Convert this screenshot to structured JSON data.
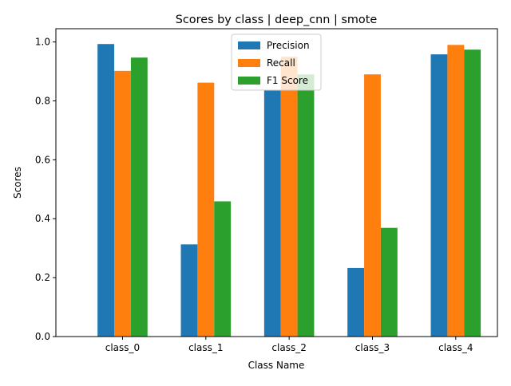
{
  "chart_data": {
    "type": "bar",
    "title": "Scores by class | deep_cnn | smote",
    "xlabel": "Class Name",
    "ylabel": "Scores",
    "categories": [
      "class_0",
      "class_1",
      "class_2",
      "class_3",
      "class_4"
    ],
    "series": [
      {
        "name": "Precision",
        "color": "#1f77b4",
        "values": [
          0.993,
          0.313,
          0.835,
          0.233,
          0.958
        ]
      },
      {
        "name": "Recall",
        "color": "#ff7f0e",
        "values": [
          0.902,
          0.862,
          0.95,
          0.89,
          0.99
        ]
      },
      {
        "name": "F1 Score",
        "color": "#2ca02c",
        "values": [
          0.947,
          0.459,
          0.89,
          0.369,
          0.974
        ]
      }
    ],
    "ylim": [
      0,
      1.045
    ],
    "yticks": [
      "0.0",
      "0.2",
      "0.4",
      "0.6",
      "0.8",
      "1.0"
    ],
    "grid": false,
    "legend_position": "top-center"
  }
}
